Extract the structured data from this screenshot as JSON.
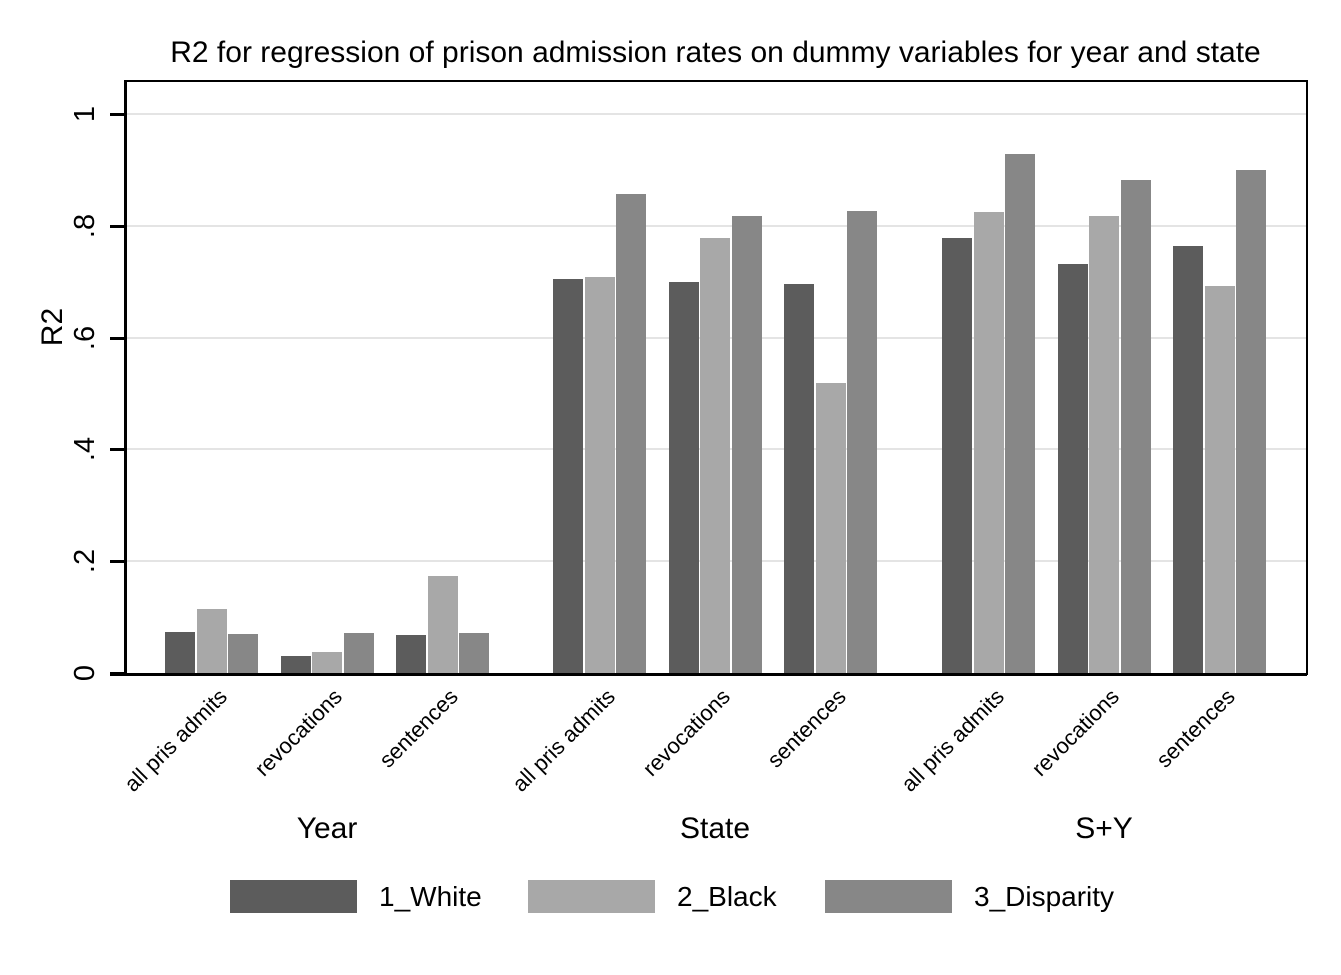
{
  "chart_data": {
    "type": "bar",
    "title": "R2 for regression of prison admission rates on dummy variables for year and state",
    "ylabel": "R2",
    "xlabel": "",
    "ylim": [
      0,
      1
    ],
    "ytick_values": [
      0,
      0.2,
      0.4,
      0.6,
      0.8,
      1
    ],
    "ytick_labels": [
      "0",
      ".2",
      ".4",
      ".6",
      ".8",
      "1"
    ],
    "grid": true,
    "legend_position": "bottom",
    "groups": [
      "Year",
      "State",
      "S+Y"
    ],
    "categories": [
      "all pris admits",
      "revocations",
      "sentences"
    ],
    "series": [
      {
        "name": "1_White",
        "color": "#5c5c5c",
        "values": [
          [
            0.073,
            0.03,
            0.068
          ],
          [
            0.704,
            0.7,
            0.695
          ],
          [
            0.778,
            0.731,
            0.764
          ]
        ]
      },
      {
        "name": "2_Black",
        "color": "#a8a8a8",
        "values": [
          [
            0.115,
            0.037,
            0.174
          ],
          [
            0.709,
            0.778,
            0.518
          ],
          [
            0.825,
            0.818,
            0.692
          ]
        ]
      },
      {
        "name": "3_Disparity",
        "color": "#878787",
        "values": [
          [
            0.069,
            0.072,
            0.071
          ],
          [
            0.857,
            0.818,
            0.826
          ],
          [
            0.928,
            0.882,
            0.9
          ]
        ]
      }
    ]
  }
}
